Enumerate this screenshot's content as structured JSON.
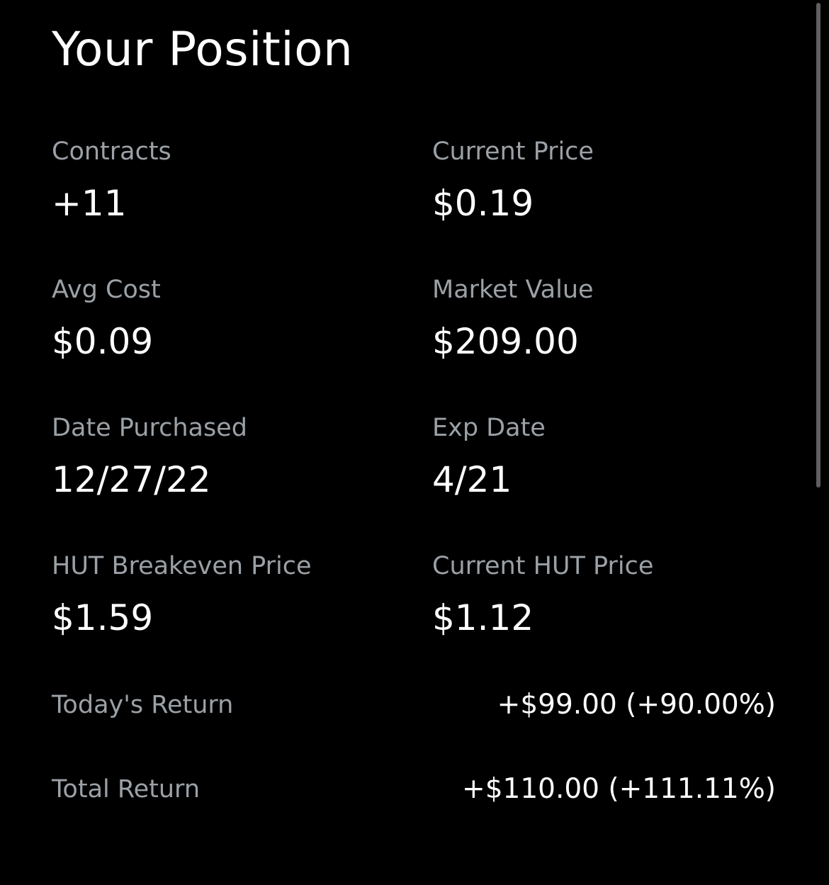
{
  "title": "Your Position",
  "stats": [
    {
      "label": "Contracts",
      "value": "+11"
    },
    {
      "label": "Current Price",
      "value": "$0.19"
    },
    {
      "label": "Avg Cost",
      "value": "$0.09"
    },
    {
      "label": "Market Value",
      "value": "$209.00"
    },
    {
      "label": "Date Purchased",
      "value": "12/27/22"
    },
    {
      "label": "Exp Date",
      "value": "4/21"
    },
    {
      "label": "HUT Breakeven Price",
      "value": "$1.59"
    },
    {
      "label": "Current HUT Price",
      "value": "$1.12"
    }
  ],
  "returns": [
    {
      "label": "Today's Return",
      "value": "+$99.00 (+90.00%)"
    },
    {
      "label": "Total Return",
      "value": "+$110.00 (+111.11%)"
    }
  ],
  "colors": {
    "background": "#000000",
    "label": "#9ba1a6",
    "value": "#ffffff",
    "scrollbar": "#5f5f62"
  }
}
